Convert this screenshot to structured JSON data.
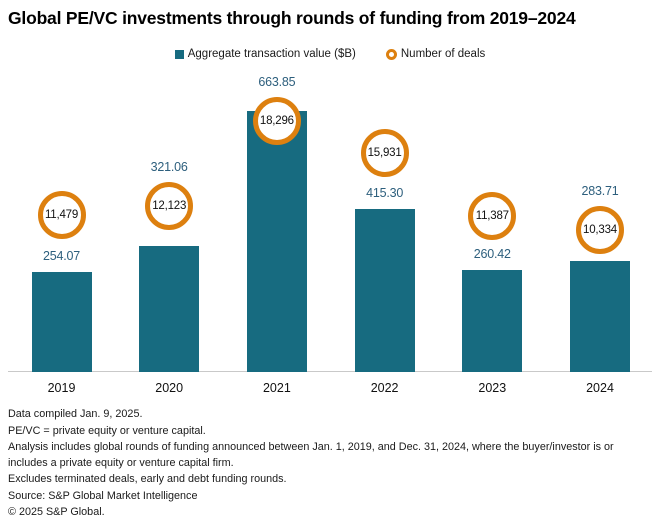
{
  "title": "Global PE/VC investments through rounds of funding from 2019–2024",
  "legend": {
    "value_label": "Aggregate transaction value ($B)",
    "deals_label": "Number of deals"
  },
  "chart_data": {
    "type": "bar",
    "categories": [
      "2019",
      "2020",
      "2021",
      "2022",
      "2023",
      "2024"
    ],
    "series": [
      {
        "name": "Aggregate transaction value ($B)",
        "values": [
          254.07,
          321.06,
          663.85,
          415.3,
          260.42,
          283.71
        ],
        "labels": [
          "254.07",
          "321.06",
          "663.85",
          "415.30",
          "260.42",
          "283.71"
        ]
      },
      {
        "name": "Number of deals",
        "values": [
          11479,
          12123,
          18296,
          15931,
          11387,
          10334
        ],
        "labels": [
          "11,479",
          "12,123",
          "18,296",
          "15,931",
          "11,387",
          "10,334"
        ]
      }
    ],
    "title": "Global PE/VC investments through rounds of funding from 2019–2024",
    "xlabel": "",
    "ylabel": "",
    "grid": false,
    "legend_position": "top",
    "value_axis_range": [
      0,
      700
    ],
    "deals_axis_range": [
      0,
      19000
    ],
    "colors": {
      "bar": "#176b80",
      "deal_ring": "#dd800f",
      "value_label": "#2d5f7d",
      "axis_line": "#c9c9c9"
    }
  },
  "footer": {
    "lines": [
      "Data compiled Jan. 9, 2025.",
      "PE/VC = private equity or venture capital.",
      "Analysis includes global rounds of funding announced between Jan. 1, 2019, and Dec. 31, 2024, where the buyer/investor is or includes a private equity or venture capital firm.",
      "Excludes terminated deals, early and debt funding rounds.",
      "Source: S&P Global Market Intelligence",
      "© 2025 S&P Global."
    ]
  }
}
